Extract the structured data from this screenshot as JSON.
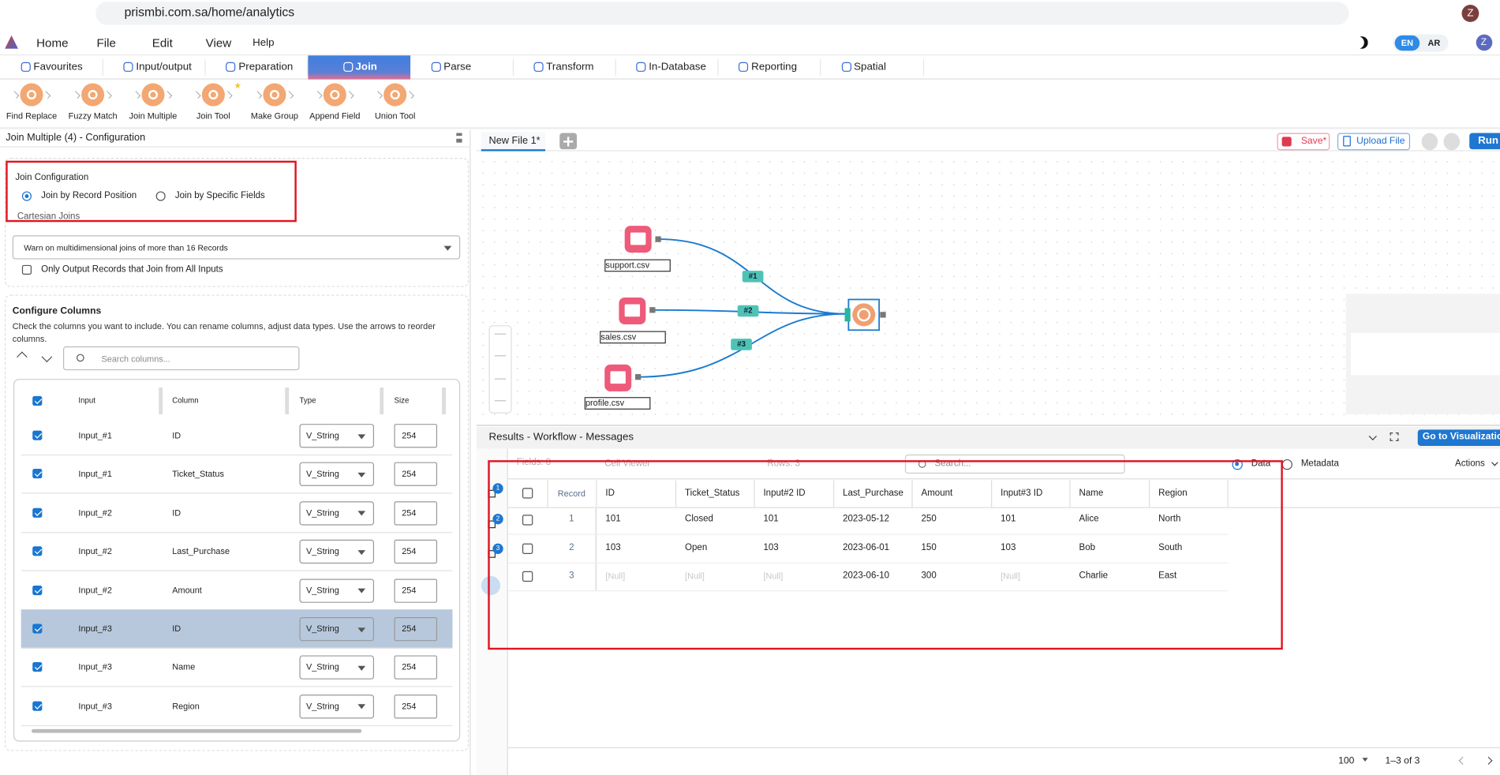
{
  "browser": {
    "url": "prismbi.com.sa/home/analytics",
    "profile": "Z"
  },
  "menu": {
    "items": [
      "Home",
      "File",
      "Edit",
      "View",
      "Help"
    ],
    "languages": [
      "EN",
      "AR"
    ],
    "avatar": "Z"
  },
  "tabs": [
    "Favourites",
    "Input/output",
    "Preparation",
    "Join",
    "Parse",
    "Transform",
    "In-Database",
    "Reporting",
    "Spatial"
  ],
  "tools": [
    "Find Replace",
    "Fuzzy Match",
    "Join Multiple",
    "Join Tool",
    "Make Group",
    "Append Field",
    "Union Tool"
  ],
  "config": {
    "title": "Join Multiple (4) - Configuration",
    "section": "Join Configuration",
    "options": [
      "Join by Record Position",
      "Join by Specific Fields"
    ],
    "cartesian": "Cartesian Joins",
    "warn": "Warn on multidimensional joins of more than 16 Records",
    "only_output": "Only Output Records that Join from All Inputs"
  },
  "columns": {
    "title": "Configure Columns",
    "description": "Check the columns you want to include. You can rename columns, adjust data types. Use the arrows to reorder columns.",
    "search": "Search columns...",
    "headers": [
      "Input",
      "Column",
      "Type",
      "Size"
    ],
    "rows": [
      [
        "Input_#1",
        "ID",
        "V_String",
        "254"
      ],
      [
        "Input_#1",
        "Ticket_Status",
        "V_String",
        "254"
      ],
      [
        "Input_#2",
        "ID",
        "V_String",
        "254"
      ],
      [
        "Input_#2",
        "Last_Purchase",
        "V_String",
        "254"
      ],
      [
        "Input_#2",
        "Amount",
        "V_String",
        "254"
      ],
      [
        "Input_#3",
        "ID",
        "V_String",
        "254"
      ],
      [
        "Input_#3",
        "Name",
        "V_String",
        "254"
      ],
      [
        "Input_#3",
        "Region",
        "V_String",
        "254"
      ]
    ]
  },
  "canvas": {
    "tab": "New File 1*",
    "save": "Save*",
    "upload": "Upload File",
    "run": "Run",
    "nodes": [
      "support.csv",
      "sales.csv",
      "profile.csv"
    ],
    "edges": [
      "#1",
      "#2",
      "#3"
    ]
  },
  "results": {
    "title": "Results - Workflow - Messages",
    "visualize": "Go to Visualization",
    "fields": "Fields: 8",
    "cell_viewer": "Cell Viewer",
    "rows_count": "Rows: 3",
    "search": "Search...",
    "views": [
      "Data",
      "Metadata"
    ],
    "actions": "Actions",
    "badges": [
      "1",
      "2",
      "3"
    ],
    "headers": [
      "Record",
      "ID",
      "Ticket_Status",
      "Input#2 ID",
      "Last_Purchase",
      "Amount",
      "Input#3 ID",
      "Name",
      "Region"
    ],
    "null_label": "[Null]",
    "rows": [
      [
        "1",
        "101",
        "Closed",
        "101",
        "2023-05-12",
        "250",
        "101",
        "Alice",
        "North"
      ],
      [
        "2",
        "103",
        "Open",
        "103",
        "2023-06-01",
        "150",
        "103",
        "Bob",
        "South"
      ],
      [
        "3",
        null,
        null,
        null,
        "2023-06-10",
        "300",
        null,
        "Charlie",
        "East"
      ]
    ],
    "page_size": "100",
    "range": "1–3 of 3"
  }
}
